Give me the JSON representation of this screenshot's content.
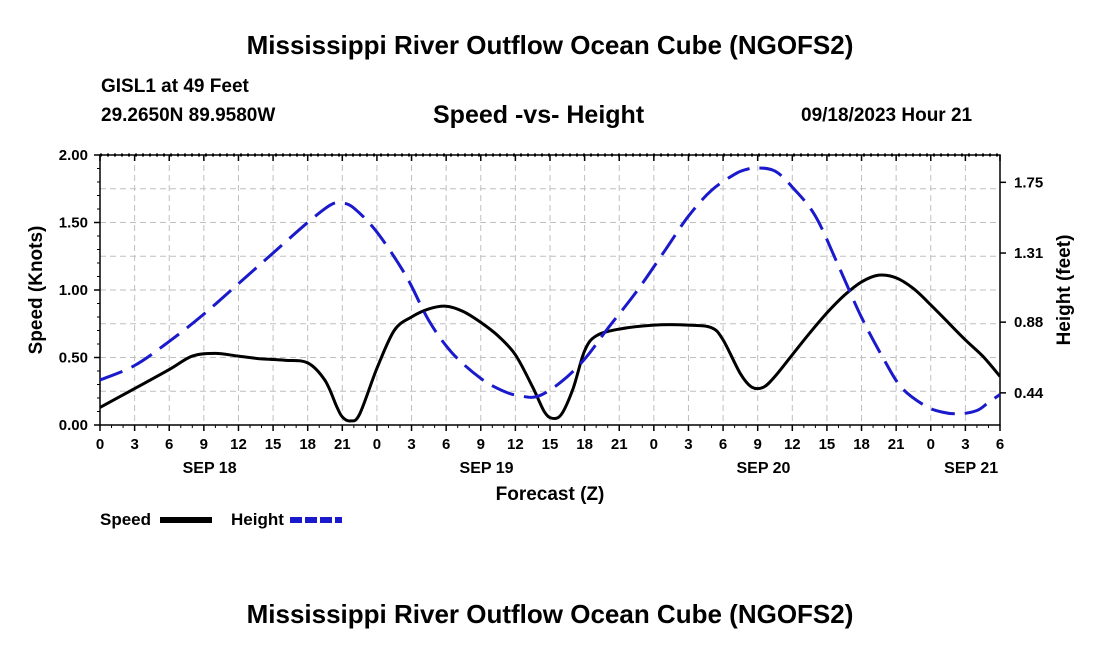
{
  "header": {
    "title": "Mississippi River Outflow Ocean Cube (NGOFS2)",
    "station": "GISL1 at 49 Feet",
    "coords": "29.2650N  89.9580W",
    "subtitle": "Speed -vs- Height",
    "datetime": "09/18/2023 Hour 21"
  },
  "footer": {
    "title": "Mississippi River Outflow Ocean Cube (NGOFS2)"
  },
  "chart_data": {
    "type": "line",
    "xlabel": "Forecast (Z)",
    "ylabel_left": "Speed (Knots)",
    "ylabel_right": "Height (feet)",
    "x_unit": "forecast hours from SEP 18 00Z",
    "xlim": [
      0,
      78
    ],
    "ylim_left": [
      0,
      2
    ],
    "ylim_right": [
      0.24,
      1.92
    ],
    "x_ticks": [
      {
        "x": 0,
        "label": "0"
      },
      {
        "x": 3,
        "label": "3"
      },
      {
        "x": 6,
        "label": "6"
      },
      {
        "x": 9,
        "label": "9"
      },
      {
        "x": 12,
        "label": "12"
      },
      {
        "x": 15,
        "label": "15"
      },
      {
        "x": 18,
        "label": "18"
      },
      {
        "x": 21,
        "label": "21"
      },
      {
        "x": 24,
        "label": "0"
      },
      {
        "x": 27,
        "label": "3"
      },
      {
        "x": 30,
        "label": "6"
      },
      {
        "x": 33,
        "label": "9"
      },
      {
        "x": 36,
        "label": "12"
      },
      {
        "x": 39,
        "label": "15"
      },
      {
        "x": 42,
        "label": "18"
      },
      {
        "x": 45,
        "label": "21"
      },
      {
        "x": 48,
        "label": "0"
      },
      {
        "x": 51,
        "label": "3"
      },
      {
        "x": 54,
        "label": "6"
      },
      {
        "x": 57,
        "label": "9"
      },
      {
        "x": 60,
        "label": "12"
      },
      {
        "x": 63,
        "label": "15"
      },
      {
        "x": 66,
        "label": "18"
      },
      {
        "x": 69,
        "label": "21"
      },
      {
        "x": 72,
        "label": "0"
      },
      {
        "x": 75,
        "label": "3"
      },
      {
        "x": 78,
        "label": "6"
      }
    ],
    "date_labels": [
      {
        "x": 9.5,
        "label": "SEP 18"
      },
      {
        "x": 33.5,
        "label": "SEP 19"
      },
      {
        "x": 57.5,
        "label": "SEP 20"
      },
      {
        "x": 75.5,
        "label": "SEP 21"
      }
    ],
    "y_ticks_left": [
      {
        "v": 0,
        "label": "0.00"
      },
      {
        "v": 0.5,
        "label": "0.50"
      },
      {
        "v": 1.0,
        "label": "1.00"
      },
      {
        "v": 1.5,
        "label": "1.50"
      },
      {
        "v": 2.0,
        "label": "2.00"
      }
    ],
    "y_ticks_right": [
      {
        "v": 0.44,
        "label": "0.44"
      },
      {
        "v": 0.88,
        "label": "0.88"
      },
      {
        "v": 1.31,
        "label": "1.31"
      },
      {
        "v": 1.75,
        "label": "1.75"
      }
    ],
    "legend": [
      {
        "name": "Speed",
        "color": "#000000",
        "style": "solid"
      },
      {
        "name": "Height",
        "color": "#1a1acc",
        "style": "dashed"
      }
    ],
    "series": [
      {
        "name": "Speed",
        "axis": "left",
        "color": "#000000",
        "points": [
          [
            0,
            0.13
          ],
          [
            3,
            0.27
          ],
          [
            6,
            0.41
          ],
          [
            8,
            0.51
          ],
          [
            10,
            0.53
          ],
          [
            12,
            0.51
          ],
          [
            14,
            0.49
          ],
          [
            16,
            0.48
          ],
          [
            18,
            0.46
          ],
          [
            19.5,
            0.33
          ],
          [
            20.5,
            0.14
          ],
          [
            21,
            0.06
          ],
          [
            21.7,
            0.03
          ],
          [
            22.5,
            0.08
          ],
          [
            24,
            0.42
          ],
          [
            25.5,
            0.7
          ],
          [
            27,
            0.8
          ],
          [
            28.5,
            0.86
          ],
          [
            30,
            0.88
          ],
          [
            31.5,
            0.84
          ],
          [
            33,
            0.76
          ],
          [
            34.5,
            0.66
          ],
          [
            36,
            0.52
          ],
          [
            37.5,
            0.28
          ],
          [
            38.5,
            0.1
          ],
          [
            39.2,
            0.05
          ],
          [
            40,
            0.08
          ],
          [
            41,
            0.27
          ],
          [
            42,
            0.55
          ],
          [
            43,
            0.66
          ],
          [
            45,
            0.71
          ],
          [
            48,
            0.74
          ],
          [
            51,
            0.74
          ],
          [
            53,
            0.72
          ],
          [
            54,
            0.63
          ],
          [
            55.5,
            0.38
          ],
          [
            56.5,
            0.28
          ],
          [
            57.5,
            0.28
          ],
          [
            58.5,
            0.36
          ],
          [
            60,
            0.52
          ],
          [
            61.5,
            0.68
          ],
          [
            63,
            0.83
          ],
          [
            64.5,
            0.96
          ],
          [
            66,
            1.06
          ],
          [
            67.5,
            1.11
          ],
          [
            69,
            1.09
          ],
          [
            70.5,
            1.01
          ],
          [
            72,
            0.89
          ],
          [
            73.5,
            0.76
          ],
          [
            75,
            0.63
          ],
          [
            76.5,
            0.51
          ],
          [
            78,
            0.36
          ]
        ]
      },
      {
        "name": "Height",
        "axis": "right",
        "color": "#1a1acc",
        "points": [
          [
            0,
            0.52
          ],
          [
            3,
            0.61
          ],
          [
            6,
            0.76
          ],
          [
            9,
            0.93
          ],
          [
            12,
            1.12
          ],
          [
            15,
            1.31
          ],
          [
            18,
            1.5
          ],
          [
            20,
            1.61
          ],
          [
            21,
            1.62
          ],
          [
            22,
            1.59
          ],
          [
            24,
            1.44
          ],
          [
            26.5,
            1.17
          ],
          [
            28.5,
            0.89
          ],
          [
            30.5,
            0.69
          ],
          [
            33,
            0.53
          ],
          [
            35,
            0.45
          ],
          [
            36.5,
            0.42
          ],
          [
            38,
            0.42
          ],
          [
            40,
            0.51
          ],
          [
            42,
            0.65
          ],
          [
            44,
            0.84
          ],
          [
            46.5,
            1.07
          ],
          [
            49,
            1.33
          ],
          [
            51,
            1.54
          ],
          [
            53,
            1.7
          ],
          [
            55,
            1.8
          ],
          [
            56,
            1.83
          ],
          [
            57,
            1.84
          ],
          [
            58.5,
            1.82
          ],
          [
            60,
            1.72
          ],
          [
            62,
            1.54
          ],
          [
            64,
            1.23
          ],
          [
            66,
            0.91
          ],
          [
            68,
            0.64
          ],
          [
            69.5,
            0.47
          ],
          [
            71.5,
            0.36
          ],
          [
            73,
            0.32
          ],
          [
            74.5,
            0.31
          ],
          [
            76,
            0.33
          ],
          [
            77,
            0.38
          ],
          [
            78,
            0.43
          ]
        ]
      }
    ]
  }
}
